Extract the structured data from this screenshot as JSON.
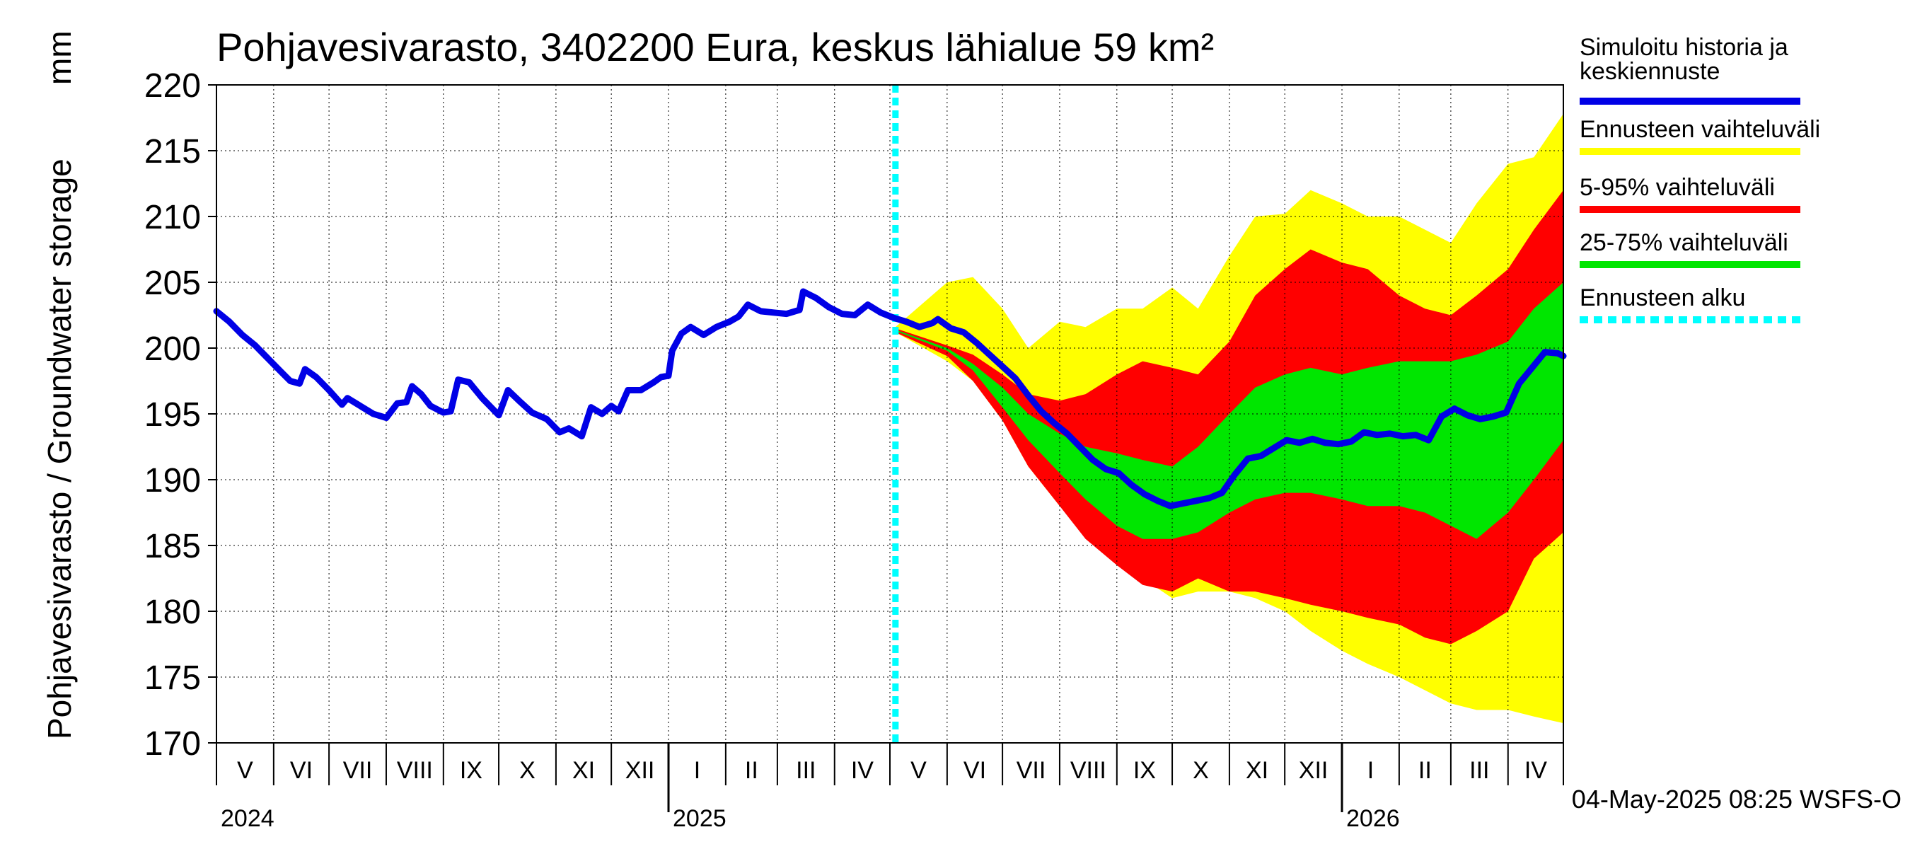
{
  "chart_data": {
    "type": "area",
    "title": "Pohjavesivarasto, 3402200 Eura, keskus lähialue 59 km²",
    "ylabel": "Pohjavesivarasto / Groundwater storage",
    "yunit": "mm",
    "ylim": [
      170,
      220
    ],
    "yticks": [
      "170",
      "175",
      "180",
      "185",
      "190",
      "195",
      "200",
      "205",
      "210",
      "215",
      "220"
    ],
    "xlim": [
      "2024-05-01",
      "2026-05-01"
    ],
    "grid": true,
    "legend_placement": "right",
    "months": [
      "V",
      "VI",
      "VII",
      "VIII",
      "IX",
      "X",
      "XI",
      "XII",
      "I",
      "II",
      "III",
      "IV",
      "V",
      "VI",
      "VII",
      "VIII",
      "IX",
      "X",
      "XI",
      "XII",
      "I",
      "II",
      "III",
      "IV"
    ],
    "years": [
      {
        "label": "2024",
        "date": "2024-05-01"
      },
      {
        "label": "2025",
        "date": "2025-01-01"
      },
      {
        "label": "2026",
        "date": "2026-01-01"
      }
    ],
    "forecast_start": "2025-05-04",
    "footer": "04-May-2025 08:25 WSFS-O",
    "series": [
      {
        "name": "Simuloitu historia ja keskiennuste",
        "color": "#0000e6",
        "points": [
          [
            "2024-05-01",
            202.8
          ],
          [
            "2024-05-08",
            202.0
          ],
          [
            "2024-05-15",
            201.0
          ],
          [
            "2024-05-22",
            200.2
          ],
          [
            "2024-05-29",
            199.2
          ],
          [
            "2024-06-05",
            198.2
          ],
          [
            "2024-06-10",
            197.5
          ],
          [
            "2024-06-15",
            197.3
          ],
          [
            "2024-06-18",
            198.4
          ],
          [
            "2024-06-24",
            197.8
          ],
          [
            "2024-07-01",
            196.8
          ],
          [
            "2024-07-08",
            195.7
          ],
          [
            "2024-07-11",
            196.2
          ],
          [
            "2024-07-18",
            195.6
          ],
          [
            "2024-07-25",
            195.0
          ],
          [
            "2024-08-01",
            194.7
          ],
          [
            "2024-08-07",
            195.8
          ],
          [
            "2024-08-12",
            195.9
          ],
          [
            "2024-08-15",
            197.1
          ],
          [
            "2024-08-20",
            196.5
          ],
          [
            "2024-08-25",
            195.6
          ],
          [
            "2024-09-01",
            195.1
          ],
          [
            "2024-09-05",
            195.2
          ],
          [
            "2024-09-09",
            197.6
          ],
          [
            "2024-09-15",
            197.4
          ],
          [
            "2024-09-22",
            196.2
          ],
          [
            "2024-10-01",
            194.9
          ],
          [
            "2024-10-06",
            196.8
          ],
          [
            "2024-10-12",
            196.0
          ],
          [
            "2024-10-19",
            195.1
          ],
          [
            "2024-10-27",
            194.6
          ],
          [
            "2024-11-03",
            193.6
          ],
          [
            "2024-11-08",
            193.9
          ],
          [
            "2024-11-15",
            193.3
          ],
          [
            "2024-11-20",
            195.5
          ],
          [
            "2024-11-26",
            195.0
          ],
          [
            "2024-12-01",
            195.6
          ],
          [
            "2024-12-05",
            195.2
          ],
          [
            "2024-12-10",
            196.8
          ],
          [
            "2024-12-17",
            196.8
          ],
          [
            "2024-12-24",
            197.4
          ],
          [
            "2024-12-28",
            197.8
          ],
          [
            "2025-01-01",
            197.9
          ],
          [
            "2025-01-03",
            199.8
          ],
          [
            "2025-01-08",
            201.1
          ],
          [
            "2025-01-13",
            201.6
          ],
          [
            "2025-01-20",
            201.0
          ],
          [
            "2025-01-27",
            201.6
          ],
          [
            "2025-02-03",
            202.0
          ],
          [
            "2025-02-08",
            202.4
          ],
          [
            "2025-02-13",
            203.3
          ],
          [
            "2025-02-20",
            202.8
          ],
          [
            "2025-02-27",
            202.7
          ],
          [
            "2025-03-06",
            202.6
          ],
          [
            "2025-03-13",
            202.9
          ],
          [
            "2025-03-15",
            204.3
          ],
          [
            "2025-03-22",
            203.8
          ],
          [
            "2025-03-29",
            203.1
          ],
          [
            "2025-04-05",
            202.6
          ],
          [
            "2025-04-12",
            202.5
          ],
          [
            "2025-04-19",
            203.3
          ],
          [
            "2025-04-26",
            202.7
          ],
          [
            "2025-05-03",
            202.3
          ],
          [
            "2025-05-10",
            202.0
          ],
          [
            "2025-05-17",
            201.6
          ],
          [
            "2025-05-24",
            201.9
          ],
          [
            "2025-05-27",
            202.2
          ],
          [
            "2025-06-03",
            201.5
          ],
          [
            "2025-06-10",
            201.2
          ],
          [
            "2025-06-17",
            200.4
          ],
          [
            "2025-06-24",
            199.5
          ],
          [
            "2025-07-01",
            198.6
          ],
          [
            "2025-07-08",
            197.7
          ],
          [
            "2025-07-15",
            196.4
          ],
          [
            "2025-07-22",
            195.2
          ],
          [
            "2025-07-29",
            194.3
          ],
          [
            "2025-08-05",
            193.5
          ],
          [
            "2025-08-12",
            192.5
          ],
          [
            "2025-08-19",
            191.5
          ],
          [
            "2025-08-26",
            190.8
          ],
          [
            "2025-09-02",
            190.5
          ],
          [
            "2025-09-09",
            189.6
          ],
          [
            "2025-09-16",
            188.9
          ],
          [
            "2025-09-23",
            188.4
          ],
          [
            "2025-09-30",
            188.0
          ],
          [
            "2025-10-07",
            188.2
          ],
          [
            "2025-10-14",
            188.4
          ],
          [
            "2025-10-21",
            188.6
          ],
          [
            "2025-10-28",
            189.0
          ],
          [
            "2025-11-04",
            190.4
          ],
          [
            "2025-11-11",
            191.6
          ],
          [
            "2025-11-18",
            191.8
          ],
          [
            "2025-11-25",
            192.4
          ],
          [
            "2025-12-02",
            193.0
          ],
          [
            "2025-12-09",
            192.8
          ],
          [
            "2025-12-16",
            193.1
          ],
          [
            "2025-12-23",
            192.8
          ],
          [
            "2025-12-30",
            192.7
          ],
          [
            "2026-01-06",
            192.9
          ],
          [
            "2026-01-13",
            193.6
          ],
          [
            "2026-01-20",
            193.4
          ],
          [
            "2026-01-27",
            193.5
          ],
          [
            "2026-02-03",
            193.3
          ],
          [
            "2026-02-10",
            193.4
          ],
          [
            "2026-02-17",
            193.0
          ],
          [
            "2026-02-24",
            194.8
          ],
          [
            "2026-03-03",
            195.4
          ],
          [
            "2026-03-10",
            194.9
          ],
          [
            "2026-03-17",
            194.6
          ],
          [
            "2026-03-24",
            194.8
          ],
          [
            "2026-03-31",
            195.1
          ],
          [
            "2026-04-07",
            197.3
          ],
          [
            "2026-04-14",
            198.5
          ],
          [
            "2026-04-21",
            199.7
          ],
          [
            "2026-04-28",
            199.6
          ],
          [
            "2026-05-01",
            199.4
          ]
        ]
      }
    ],
    "bands": [
      {
        "name": "Ennusteen vaihteluväli",
        "color": "#ffff00",
        "x": [
          "2025-05-04",
          "2025-06-01",
          "2025-06-15",
          "2025-07-01",
          "2025-07-15",
          "2025-08-01",
          "2025-08-15",
          "2025-09-01",
          "2025-09-15",
          "2025-10-01",
          "2025-10-15",
          "2025-11-01",
          "2025-11-15",
          "2025-12-01",
          "2025-12-15",
          "2026-01-01",
          "2026-01-15",
          "2026-02-01",
          "2026-02-15",
          "2026-03-01",
          "2026-03-15",
          "2026-04-01",
          "2026-04-15",
          "2026-05-01"
        ],
        "upper": [
          201.6,
          205.0,
          205.4,
          203.0,
          200.0,
          202.0,
          201.6,
          203.0,
          203.0,
          204.6,
          203.0,
          207.0,
          210.0,
          210.2,
          212.0,
          211.0,
          210.0,
          210.0,
          209.0,
          208.0,
          211.0,
          214.0,
          214.5,
          217.8
        ],
        "lower": [
          201.2,
          199.0,
          197.5,
          194.5,
          191.0,
          188.0,
          186.0,
          184.0,
          182.5,
          181.0,
          181.5,
          181.5,
          181.0,
          180.0,
          178.5,
          177.0,
          176.0,
          175.0,
          174.0,
          173.0,
          172.5,
          172.5,
          172.0,
          171.5
        ]
      },
      {
        "name": "5-95% vaihteluväli",
        "color": "#ff0000",
        "x": [
          "2025-05-04",
          "2025-06-01",
          "2025-06-15",
          "2025-07-01",
          "2025-07-15",
          "2025-08-01",
          "2025-08-15",
          "2025-09-01",
          "2025-09-15",
          "2025-10-01",
          "2025-10-15",
          "2025-11-01",
          "2025-11-15",
          "2025-12-01",
          "2025-12-15",
          "2026-01-01",
          "2026-01-15",
          "2026-02-01",
          "2026-02-15",
          "2026-03-01",
          "2026-03-15",
          "2026-04-01",
          "2026-04-15",
          "2026-05-01"
        ],
        "upper": [
          201.5,
          200.2,
          199.5,
          198.0,
          196.5,
          196.0,
          196.5,
          198.0,
          199.0,
          198.5,
          198.0,
          200.5,
          204.0,
          206.0,
          207.5,
          206.5,
          206.0,
          204.0,
          203.0,
          202.5,
          204.0,
          206.0,
          209.0,
          212.0
        ],
        "lower": [
          201.2,
          199.4,
          197.5,
          194.5,
          191.0,
          188.0,
          185.5,
          183.5,
          182.0,
          181.5,
          182.5,
          181.5,
          181.5,
          181.0,
          180.5,
          180.0,
          179.5,
          179.0,
          178.0,
          177.5,
          178.5,
          180.0,
          184.0,
          186.0
        ]
      },
      {
        "name": "25-75% vaihteluväli",
        "color": "#00e600",
        "x": [
          "2025-05-04",
          "2025-06-01",
          "2025-06-15",
          "2025-07-01",
          "2025-07-15",
          "2025-08-01",
          "2025-08-15",
          "2025-09-01",
          "2025-09-15",
          "2025-10-01",
          "2025-10-15",
          "2025-11-01",
          "2025-11-15",
          "2025-12-01",
          "2025-12-15",
          "2026-01-01",
          "2026-01-15",
          "2026-02-01",
          "2026-02-15",
          "2026-03-01",
          "2026-03-15",
          "2026-04-01",
          "2026-04-15",
          "2026-05-01"
        ],
        "upper": [
          201.4,
          200.0,
          198.8,
          197.0,
          195.0,
          193.5,
          192.5,
          192.0,
          191.5,
          191.0,
          192.5,
          195.0,
          197.0,
          198.0,
          198.5,
          198.0,
          198.5,
          199.0,
          199.0,
          199.0,
          199.5,
          200.5,
          203.0,
          205.0
        ],
        "lower": [
          201.3,
          199.8,
          198.3,
          195.5,
          193.0,
          190.5,
          188.5,
          186.5,
          185.5,
          185.5,
          186.0,
          187.5,
          188.5,
          189.0,
          189.0,
          188.5,
          188.0,
          188.0,
          187.5,
          186.5,
          185.5,
          187.5,
          190.0,
          193.0
        ]
      }
    ],
    "legend": [
      {
        "label": "Simuloitu historia ja keskiennuste",
        "color": "#0000e6",
        "style": "solid"
      },
      {
        "label": "Ennusteen vaihteluväli",
        "color": "#ffff00",
        "style": "solid"
      },
      {
        "label": "5-95% vaihteluväli",
        "color": "#ff0000",
        "style": "solid"
      },
      {
        "label": "25-75% vaihteluväli",
        "color": "#00e600",
        "style": "solid"
      },
      {
        "label": "Ennusteen alku",
        "color": "#00ffff",
        "style": "dashed"
      }
    ]
  }
}
